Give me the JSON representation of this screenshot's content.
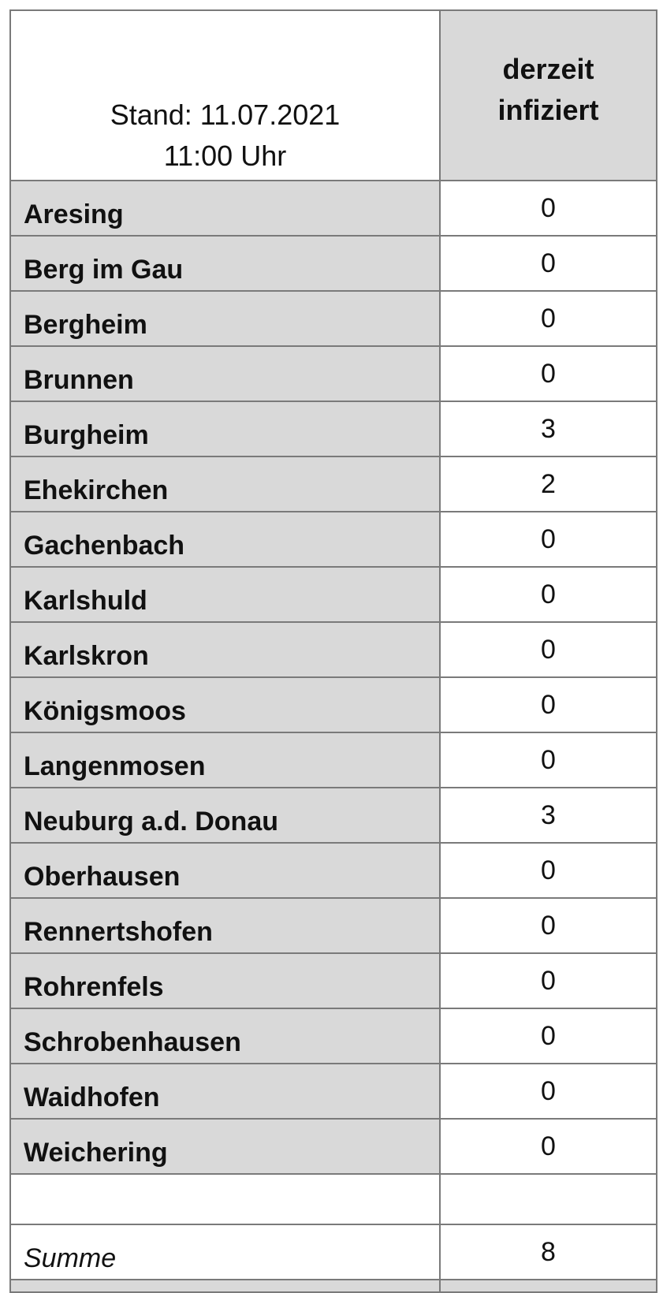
{
  "header": {
    "stand_line1": "Stand: 11.07.2021",
    "stand_line2": "11:00 Uhr",
    "column_line1": "derzeit",
    "column_line2": "infiziert"
  },
  "rows": [
    {
      "name": "Aresing",
      "value": "0"
    },
    {
      "name": "Berg im Gau",
      "value": "0"
    },
    {
      "name": "Bergheim",
      "value": "0"
    },
    {
      "name": "Brunnen",
      "value": "0"
    },
    {
      "name": "Burgheim",
      "value": "3"
    },
    {
      "name": "Ehekirchen",
      "value": "2"
    },
    {
      "name": "Gachenbach",
      "value": "0"
    },
    {
      "name": "Karlshuld",
      "value": "0"
    },
    {
      "name": "Karlskron",
      "value": "0"
    },
    {
      "name": "Königsmoos",
      "value": "0"
    },
    {
      "name": "Langenmosen",
      "value": "0"
    },
    {
      "name": "Neuburg a.d. Donau",
      "value": "3"
    },
    {
      "name": "Oberhausen",
      "value": "0"
    },
    {
      "name": "Rennertshofen",
      "value": "0"
    },
    {
      "name": "Rohrenfels",
      "value": "0"
    },
    {
      "name": "Schrobenhausen",
      "value": "0"
    },
    {
      "name": "Waidhofen",
      "value": "0"
    },
    {
      "name": "Weichering",
      "value": "0"
    }
  ],
  "summary": {
    "label": "Summe",
    "value": "8"
  },
  "colors": {
    "label_fill": "#d9d9d9",
    "border": "#7a7a7a"
  }
}
